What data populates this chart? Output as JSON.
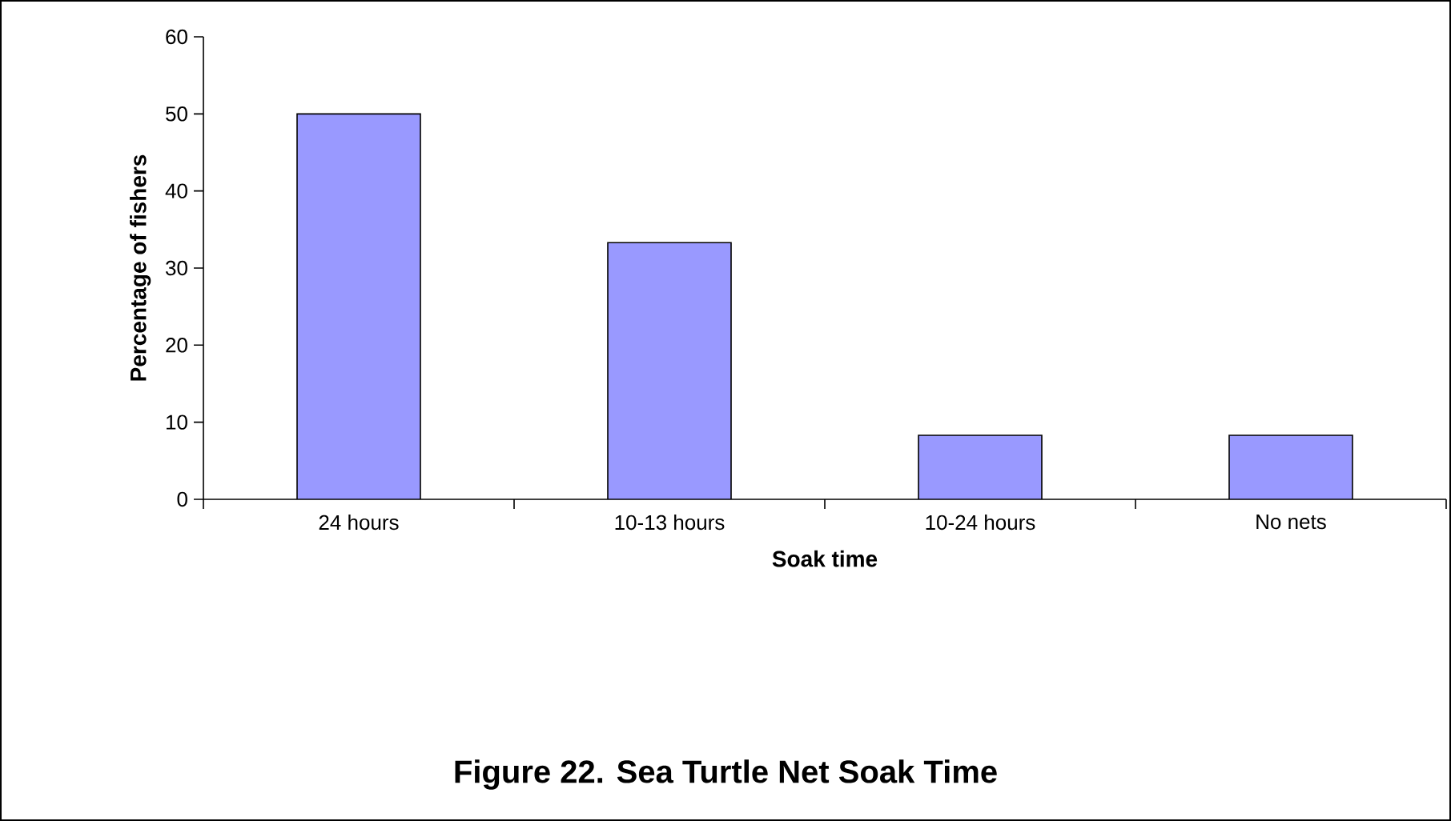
{
  "chart_data": {
    "type": "bar",
    "title": "Figure 22. Sea Turtle Net Soak Time",
    "xlabel": "Soak time",
    "ylabel": "Percentage of fishers",
    "categories": [
      "24 hours",
      "10-13 hours",
      "10-24 hours",
      "No nets"
    ],
    "values": [
      50,
      33.3,
      8.3,
      8.3
    ],
    "color": "#9999ff",
    "ylim": [
      0,
      60
    ],
    "yticks": [
      0,
      10,
      20,
      30,
      40,
      50,
      60
    ],
    "grid": false
  }
}
